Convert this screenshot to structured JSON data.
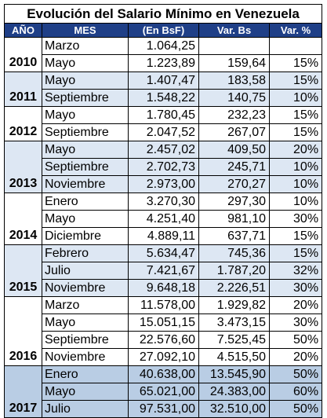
{
  "title": "Evolución del Salario Mínimo en Venezuela",
  "headers": [
    "AÑO",
    "MES",
    "(En BsF)",
    "Var. Bs",
    "Var. %"
  ],
  "groups": [
    {
      "year": "2010",
      "shade": "white",
      "rows": [
        {
          "mes": "Marzo",
          "enbs": "1.064,25",
          "var": "",
          "pct": ""
        },
        {
          "mes": "Mayo",
          "enbs": "1.223,89",
          "var": "159,64",
          "pct": "15%"
        }
      ]
    },
    {
      "year": "2011",
      "shade": "blue",
      "rows": [
        {
          "mes": "Mayo",
          "enbs": "1.407,47",
          "var": "183,58",
          "pct": "15%"
        },
        {
          "mes": "Septiembre",
          "enbs": "1.548,22",
          "var": "140,75",
          "pct": "10%"
        }
      ]
    },
    {
      "year": "2012",
      "shade": "white",
      "rows": [
        {
          "mes": "Mayo",
          "enbs": "1.780,45",
          "var": "232,23",
          "pct": "15%"
        },
        {
          "mes": "Septiembre",
          "enbs": "2.047,52",
          "var": "267,07",
          "pct": "15%"
        }
      ]
    },
    {
      "year": "2013",
      "shade": "blue",
      "rows": [
        {
          "mes": "Mayo",
          "enbs": "2.457,02",
          "var": "409,50",
          "pct": "20%"
        },
        {
          "mes": "Septiembre",
          "enbs": "2.702,73",
          "var": "245,71",
          "pct": "10%"
        },
        {
          "mes": "Noviembre",
          "enbs": "2.973,00",
          "var": "270,27",
          "pct": "10%"
        }
      ]
    },
    {
      "year": "2014",
      "shade": "white",
      "rows": [
        {
          "mes": "Enero",
          "enbs": "3.270,30",
          "var": "297,30",
          "pct": "10%"
        },
        {
          "mes": "Mayo",
          "enbs": "4.251,40",
          "var": "981,10",
          "pct": "30%"
        },
        {
          "mes": "Diciembre",
          "enbs": "4.889,11",
          "var": "637,71",
          "pct": "15%"
        }
      ]
    },
    {
      "year": "2015",
      "shade": "blue",
      "rows": [
        {
          "mes": "Febrero",
          "enbs": "5.634,47",
          "var": "745,36",
          "pct": "15%"
        },
        {
          "mes": "Julio",
          "enbs": "7.421,67",
          "var": "1.787,20",
          "pct": "32%"
        },
        {
          "mes": "Noviembre",
          "enbs": "9.648,18",
          "var": "2.226,51",
          "pct": "30%"
        }
      ]
    },
    {
      "year": "2016",
      "shade": "white",
      "rows": [
        {
          "mes": "Marzo",
          "enbs": "11.578,00",
          "var": "1.929,82",
          "pct": "20%"
        },
        {
          "mes": "Mayo",
          "enbs": "15.051,15",
          "var": "3.473,15",
          "pct": "30%"
        },
        {
          "mes": "Septiembre",
          "enbs": "22.576,60",
          "var": "7.525,45",
          "pct": "50%"
        },
        {
          "mes": "Noviembre",
          "enbs": "27.092,10",
          "var": "4.515,50",
          "pct": "20%"
        }
      ]
    },
    {
      "year": "2017",
      "shade": "dark",
      "rows": [
        {
          "mes": "Enero",
          "enbs": "40.638,00",
          "var": "13.545,90",
          "pct": "50%"
        },
        {
          "mes": "Mayo",
          "enbs": "65.021,00",
          "var": "24.383,00",
          "pct": "60%"
        },
        {
          "mes": "Julio",
          "enbs": "97.531,00",
          "var": "32.510,00",
          "pct": "50%"
        }
      ]
    }
  ],
  "colors": {
    "header_bg": "#1f3f87",
    "band_light": "#dde7f3",
    "band_dark": "#b9cde4"
  }
}
